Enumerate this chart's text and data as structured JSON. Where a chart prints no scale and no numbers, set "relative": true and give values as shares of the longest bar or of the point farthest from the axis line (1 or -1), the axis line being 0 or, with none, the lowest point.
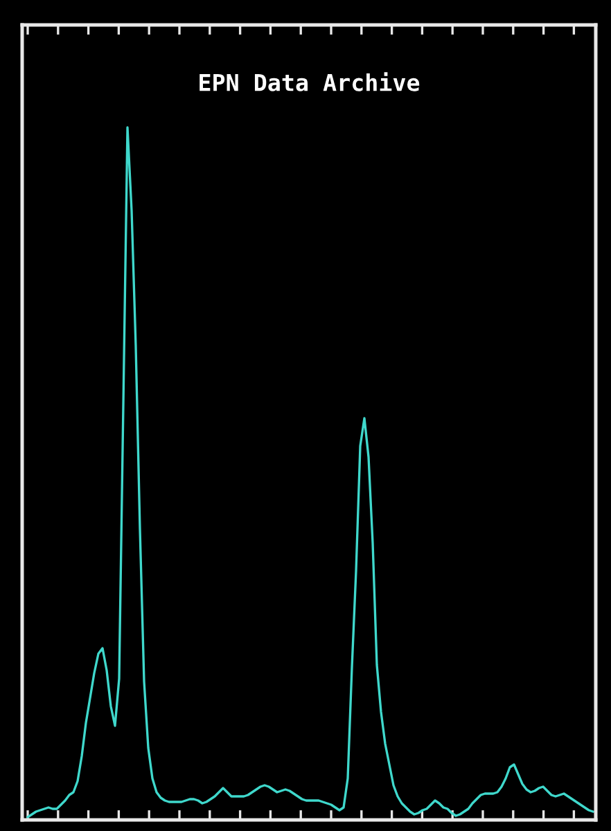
{
  "chart_data": {
    "type": "line",
    "title": "EPN Data Archive",
    "relative": true,
    "grid": false,
    "legend": false,
    "marker": "none",
    "line_style": "solid",
    "categories": [
      null,
      null,
      null,
      null,
      null,
      null,
      null,
      null,
      null,
      null,
      null,
      null,
      null,
      null,
      null,
      null,
      null,
      null,
      null,
      null,
      null,
      null,
      null,
      null,
      null,
      null,
      null,
      null,
      null,
      null,
      null,
      null,
      null,
      null,
      null,
      null,
      null,
      null,
      null,
      null,
      null,
      null,
      null,
      null,
      null,
      null,
      null,
      null,
      null,
      null,
      null,
      null,
      null,
      null,
      null,
      null,
      null,
      null,
      null,
      null,
      null,
      null,
      null,
      null,
      null,
      null,
      null,
      null,
      null,
      null,
      null,
      null,
      null,
      null,
      null,
      null,
      null,
      null,
      null,
      null,
      null,
      null,
      null,
      null,
      null,
      null,
      null,
      null,
      null,
      null,
      null,
      null,
      null,
      null,
      null,
      null,
      null,
      null,
      null,
      null,
      null,
      null,
      null,
      null,
      null,
      null,
      null,
      null,
      null,
      null,
      null,
      null,
      null,
      null,
      null,
      null,
      null,
      null,
      null,
      null,
      null,
      null,
      null,
      null,
      null,
      null,
      null,
      null,
      null,
      null,
      null,
      null,
      null,
      null,
      null,
      null,
      null
    ],
    "series": [
      {
        "color": "#3fd8cc",
        "values": [
          0.004,
          0.008,
          0.012,
          0.014,
          0.016,
          0.018,
          0.016,
          0.016,
          0.022,
          0.028,
          0.036,
          0.04,
          0.056,
          0.092,
          0.14,
          0.176,
          0.212,
          0.24,
          0.248,
          0.216,
          0.164,
          0.136,
          0.204,
          0.6,
          1.0,
          0.88,
          0.684,
          0.42,
          0.2,
          0.104,
          0.06,
          0.04,
          0.032,
          0.028,
          0.026,
          0.026,
          0.026,
          0.026,
          0.028,
          0.03,
          0.03,
          0.028,
          0.024,
          0.026,
          0.03,
          0.034,
          0.04,
          0.046,
          0.04,
          0.034,
          0.034,
          0.034,
          0.034,
          0.036,
          0.04,
          0.044,
          0.048,
          0.05,
          0.048,
          0.044,
          0.04,
          0.042,
          0.044,
          0.042,
          0.038,
          0.034,
          0.03,
          0.028,
          0.028,
          0.028,
          0.028,
          0.026,
          0.024,
          0.022,
          0.018,
          0.014,
          0.018,
          0.06,
          0.22,
          0.36,
          0.54,
          0.58,
          0.524,
          0.4,
          0.224,
          0.156,
          0.11,
          0.08,
          0.05,
          0.034,
          0.024,
          0.018,
          0.012,
          0.008,
          0.01,
          0.014,
          0.016,
          0.022,
          0.028,
          0.024,
          0.018,
          0.016,
          0.01,
          0.006,
          0.008,
          0.012,
          0.016,
          0.024,
          0.03,
          0.036,
          0.038,
          0.038,
          0.038,
          0.04,
          0.048,
          0.06,
          0.076,
          0.08,
          0.066,
          0.052,
          0.044,
          0.04,
          0.042,
          0.046,
          0.048,
          0.042,
          0.036,
          0.034,
          0.036,
          0.038,
          0.034,
          0.03,
          0.026,
          0.022,
          0.018,
          0.014,
          0.012
        ]
      }
    ]
  }
}
